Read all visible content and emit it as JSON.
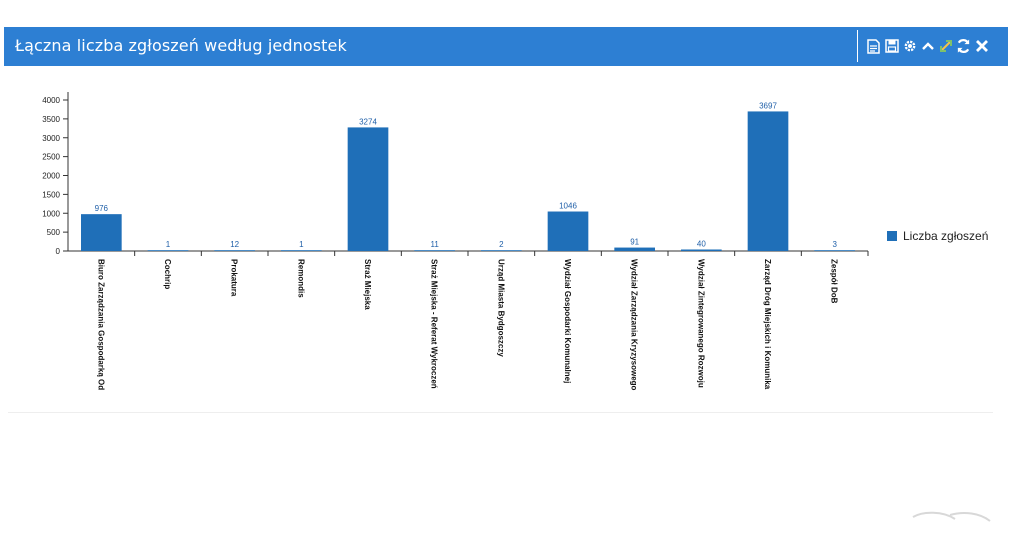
{
  "panel": {
    "title": "Łączna liczba zgłoszeń według jednostek"
  },
  "toolbar": {
    "icons": [
      "export-document-icon",
      "save-icon",
      "settings-icon",
      "collapse-icon",
      "expand-icon",
      "refresh-icon",
      "close-icon"
    ]
  },
  "colors": {
    "header": "#2d7fd3",
    "bar": "#1f6fb8",
    "label": "#1f5fa8"
  },
  "chart_data": {
    "type": "bar",
    "categories": [
      "Biuro Zarządzania Gospodarką Od",
      "Cochrip",
      "Prokatura",
      "Remondis",
      "Straż Miejska",
      "Straż Miejska - Referat Wykroczeń",
      "Urząd Miasta Bydgoszczy",
      "Wydział Gospodarki Komunalnej",
      "Wydział Zarządzania Kryzysowego",
      "Wydział Zintegrowanego Rozwoju",
      "Zarząd Dróg Miejskich i Komunika",
      "Zespół DoB"
    ],
    "series": [
      {
        "name": "Liczba zgłoszeń",
        "values": [
          976,
          1,
          12,
          1,
          3274,
          11,
          2,
          1046,
          91,
          40,
          3697,
          3
        ]
      }
    ],
    "yticks": [
      0,
      500,
      1000,
      1500,
      2000,
      2500,
      3000,
      3500,
      4000
    ],
    "ylim": [
      0,
      4000
    ],
    "legend": "right",
    "grid": false
  }
}
